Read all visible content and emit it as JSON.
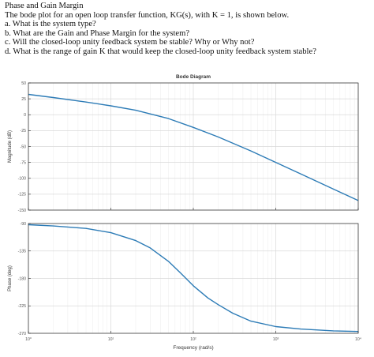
{
  "problem": {
    "heading": "Phase and Gain Margin",
    "intro": "The bode plot for an open loop transfer function, KG(s), with K = 1, is shown below.",
    "questions": [
      "a. What is the system type?",
      "b. What are the Gain and Phase Margin for the system?",
      "c. Will the closed-loop unity feedback system be stable? Why or Why not?",
      "d. What is the range of gain K that would keep the closed-loop unity feedback system stable?"
    ]
  },
  "colors": {
    "curve": "#2c7bb6",
    "axis": "#262626",
    "tick_text": "#555555",
    "grid_major": "#d9d9d9",
    "grid_minor": "#efefef",
    "background": "#ffffff"
  },
  "chart_data": {
    "type": "line",
    "title": "Bode Diagram",
    "xlabel": "Frequency (rad/s)",
    "x_scale": "log",
    "xlim": [
      1,
      10000
    ],
    "x_ticks": [
      1,
      10,
      100,
      1000,
      10000
    ],
    "x_tick_labels": [
      "10⁰",
      "10¹",
      "10²",
      "10³",
      "10⁴"
    ],
    "grid": true,
    "panels": [
      {
        "name": "magnitude",
        "ylabel": "Magnitude (dB)",
        "ylim": [
          -150,
          50
        ],
        "y_ticks": [
          50,
          25,
          0,
          -25,
          -50,
          -75,
          -100,
          -125,
          -150
        ],
        "y_tick_labels": [
          "50",
          "25",
          "0",
          "-25",
          "-50",
          "-75",
          "-100",
          "-125",
          "-150"
        ],
        "x": [
          1,
          2,
          5,
          10,
          20,
          50,
          100,
          200,
          500,
          1000,
          2000,
          5000,
          10000
        ],
        "y": [
          32,
          27,
          20,
          14,
          7,
          -6,
          -20,
          -35,
          -57,
          -75,
          -93,
          -117,
          -135
        ]
      },
      {
        "name": "phase",
        "ylabel": "Phase (deg)",
        "ylim": [
          -270,
          -90
        ],
        "y_ticks": [
          -90,
          -135,
          -180,
          -225,
          -270
        ],
        "y_tick_labels": [
          "-90",
          "-135",
          "-180",
          "-225",
          "-270"
        ],
        "x": [
          1,
          2,
          5,
          10,
          20,
          30,
          50,
          70,
          100,
          150,
          200,
          300,
          500,
          1000,
          2000,
          5000,
          10000
        ],
        "y": [
          -92,
          -94,
          -98,
          -105,
          -118,
          -130,
          -152,
          -171,
          -192,
          -212,
          -223,
          -237,
          -250,
          -259,
          -263,
          -266,
          -267
        ]
      }
    ]
  }
}
